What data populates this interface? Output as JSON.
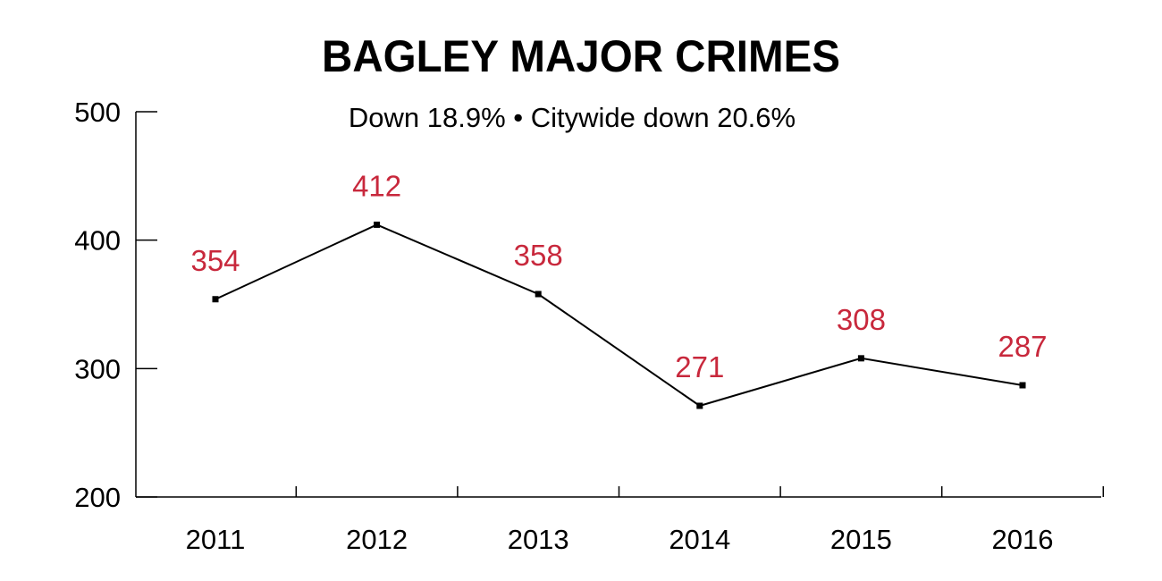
{
  "chart_data": {
    "type": "line",
    "title": "BAGLEY MAJOR CRIMES",
    "subtitle": "Down 18.9% • Citywide down 20.6%",
    "categories": [
      "2011",
      "2012",
      "2013",
      "2014",
      "2015",
      "2016"
    ],
    "series": [
      {
        "values": [
          354,
          412,
          358,
          271,
          308,
          287
        ]
      }
    ],
    "ylim": [
      200,
      500
    ],
    "yticks": [
      200,
      300,
      400,
      500
    ],
    "grid": false,
    "colors": {
      "line": "#000000",
      "data_label": "#c8283c",
      "axis": "#000000",
      "text": "#000000"
    }
  }
}
